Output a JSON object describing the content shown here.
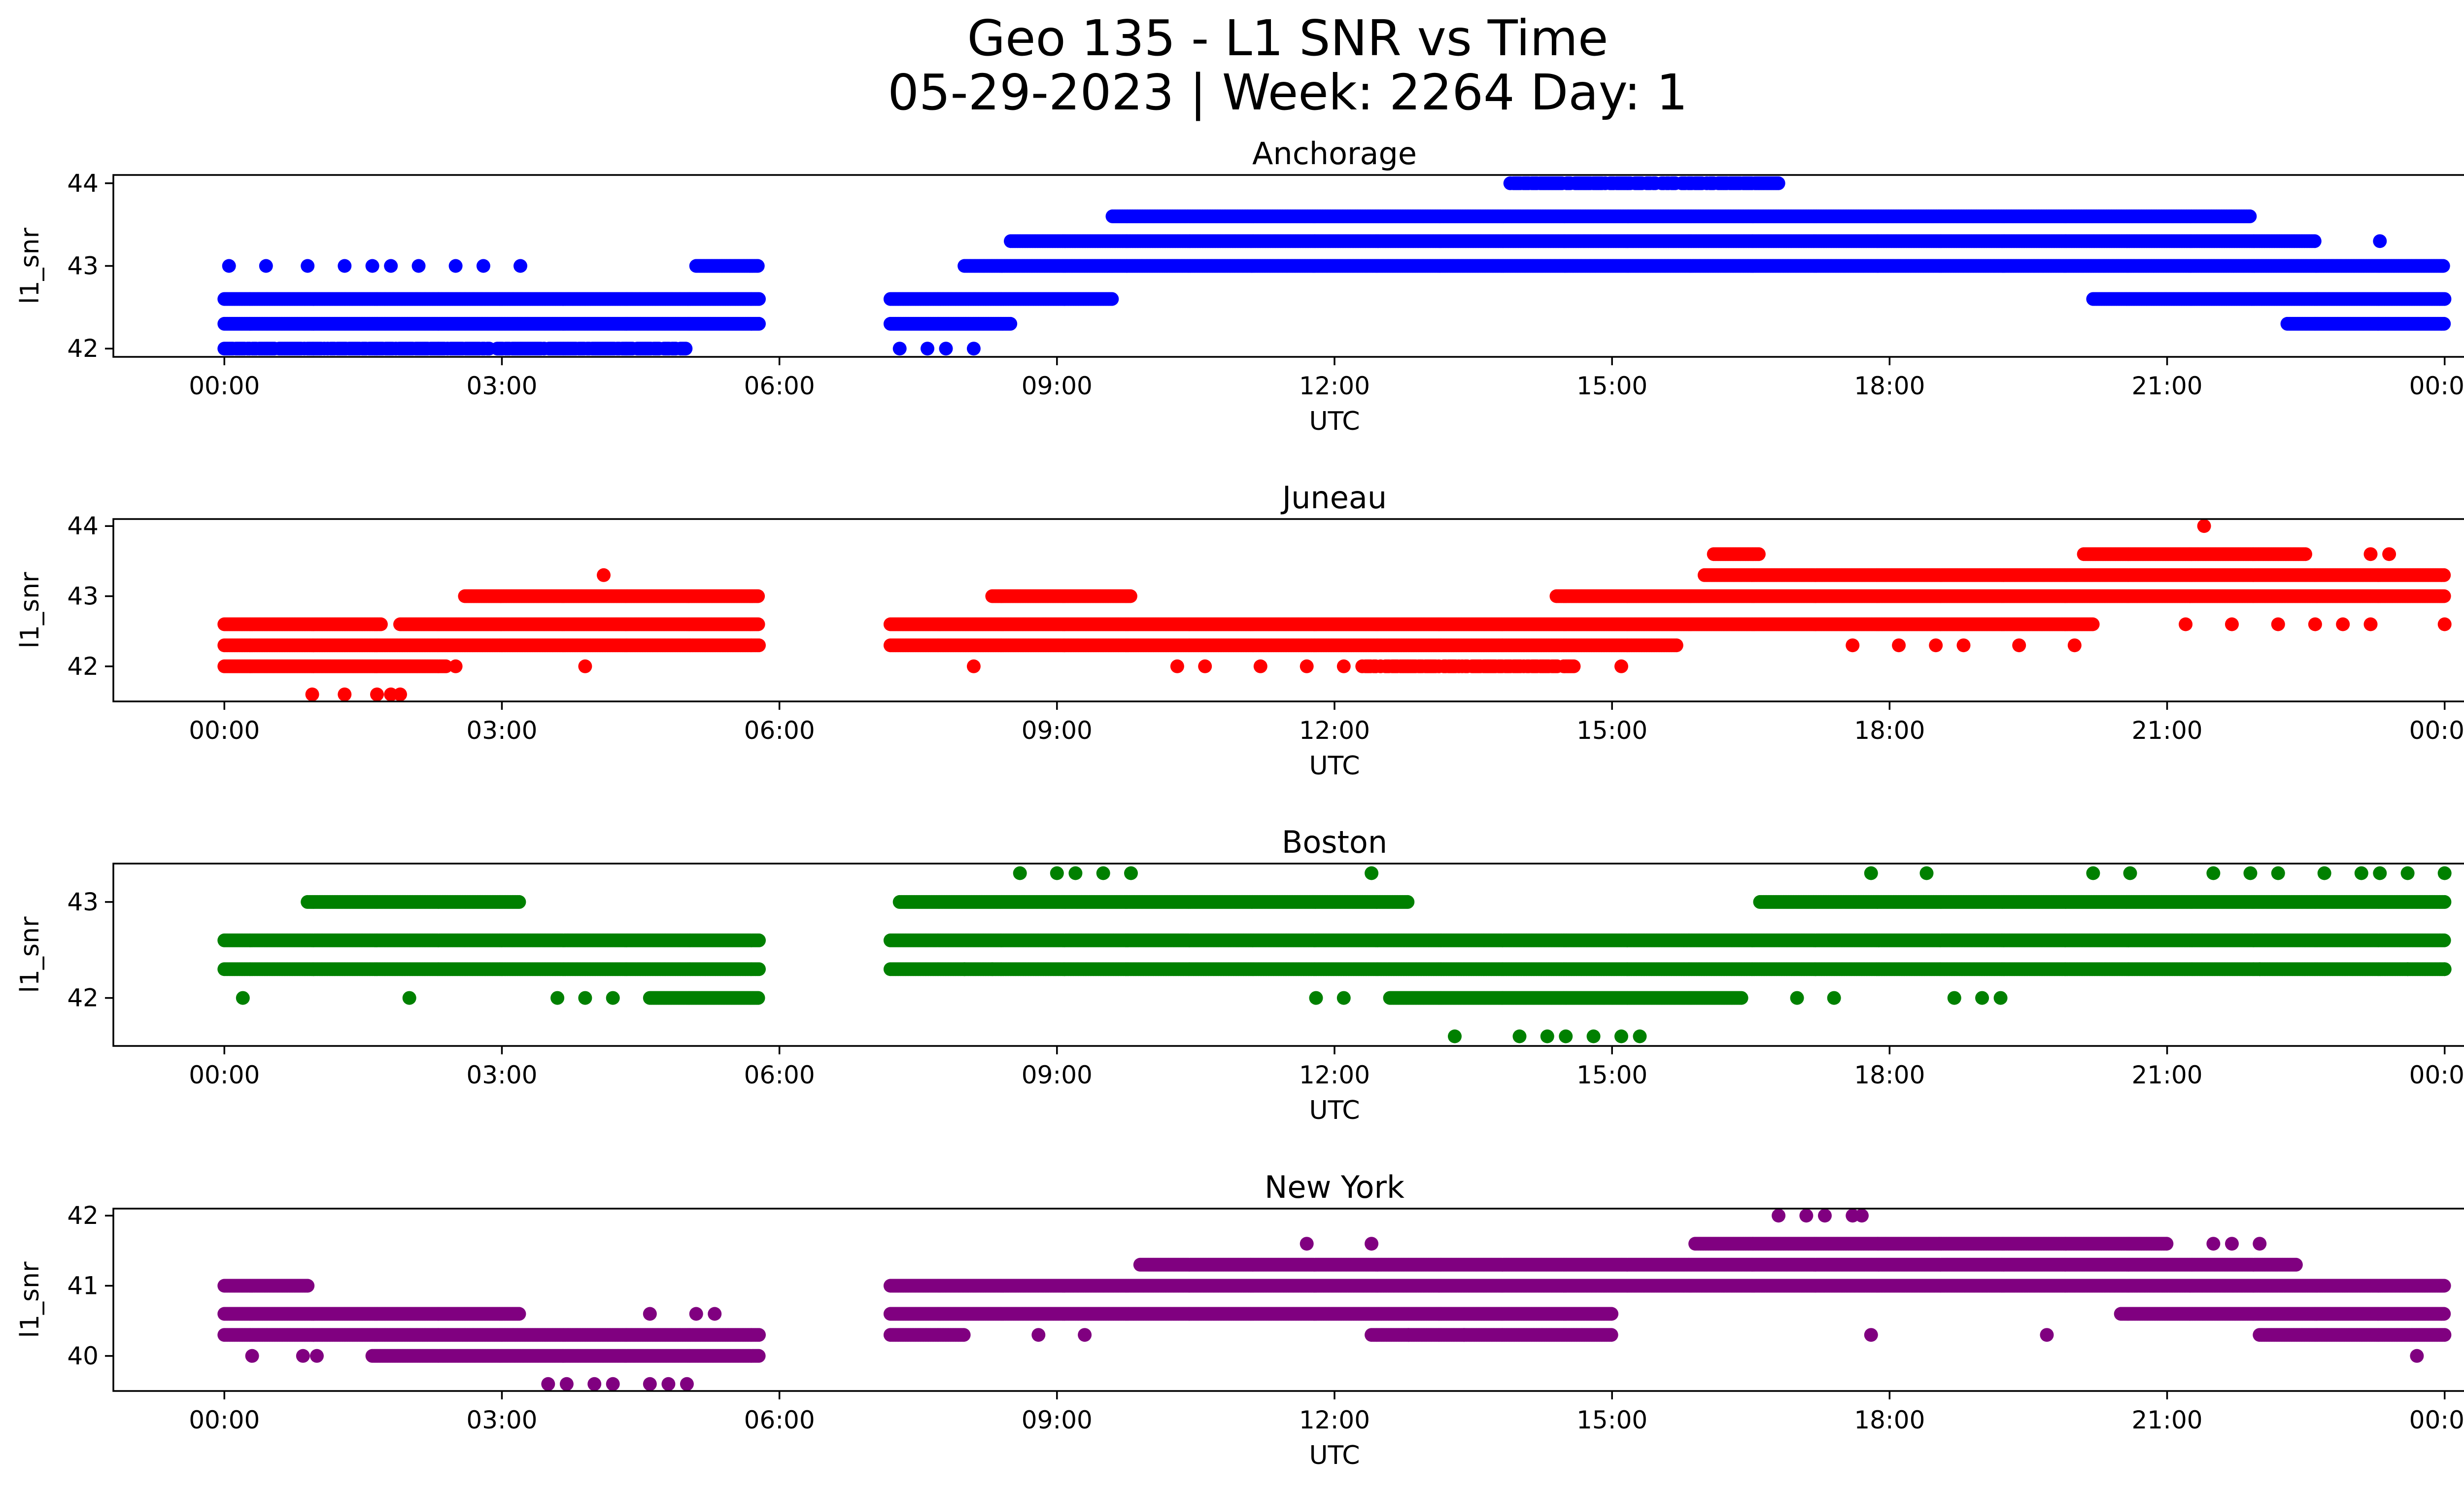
{
  "figure": {
    "title_line1": "Geo 135 - L1 SNR vs Time",
    "title_line2": "05-29-2023 | Week: 2264 Day: 1"
  },
  "chart_data": [
    {
      "type": "scatter",
      "title": "Anchorage",
      "xlabel": "UTC",
      "ylabel": "l1_snr",
      "color": "#0000ff",
      "x_unit": "hours UTC",
      "x_ticks": [
        "00:00",
        "03:00",
        "06:00",
        "09:00",
        "12:00",
        "15:00",
        "18:00",
        "21:00",
        "00:00"
      ],
      "xlim": [
        -1.2,
        25.2
      ],
      "ylim": [
        41.9,
        44.1
      ],
      "y_ticks": [
        42,
        43,
        44
      ],
      "gap_utc": [
        5.8,
        7.2
      ],
      "bands": [
        {
          "y": 42.6,
          "segments": [
            [
              0.0,
              5.78
            ],
            [
              7.2,
              9.6
            ],
            [
              20.2,
              24.0
            ]
          ],
          "density": "dense"
        },
        {
          "y": 42.3,
          "segments": [
            [
              0.0,
              5.78
            ],
            [
              7.2,
              8.5
            ],
            [
              22.3,
              24.0
            ]
          ],
          "density": "dense"
        },
        {
          "y": 42.0,
          "segments": [
            [
              0.0,
              5.0
            ]
          ],
          "density": "mixed"
        },
        {
          "y": 42.0,
          "points": [
            7.3,
            7.6,
            7.8,
            8.1
          ]
        },
        {
          "y": 43.0,
          "points": [
            0.05,
            0.45,
            0.9,
            1.3,
            1.6,
            1.8,
            2.1,
            2.5,
            2.8,
            3.2
          ]
        },
        {
          "y": 43.0,
          "segments": [
            [
              5.1,
              5.78
            ],
            [
              8.0,
              24.0
            ]
          ],
          "density": "dense"
        },
        {
          "y": 43.3,
          "segments": [
            [
              8.5,
              22.6
            ]
          ],
          "density": "dense"
        },
        {
          "y": 43.6,
          "segments": [
            [
              9.6,
              21.9
            ]
          ],
          "density": "dense"
        },
        {
          "y": 44.0,
          "segments": [
            [
              13.9,
              16.8
            ]
          ],
          "density": "mixed"
        },
        {
          "y": 43.3,
          "points": [
            23.3
          ]
        }
      ]
    },
    {
      "type": "scatter",
      "title": "Juneau",
      "xlabel": "UTC",
      "ylabel": "l1_snr",
      "color": "#ff0000",
      "x_unit": "hours UTC",
      "x_ticks": [
        "00:00",
        "03:00",
        "06:00",
        "09:00",
        "12:00",
        "15:00",
        "18:00",
        "21:00",
        "00:00"
      ],
      "xlim": [
        -1.2,
        25.2
      ],
      "ylim": [
        41.5,
        44.1
      ],
      "y_ticks": [
        42,
        43,
        44
      ],
      "gap_utc": [
        5.8,
        7.2
      ],
      "bands": [
        {
          "y": 42.3,
          "segments": [
            [
              0.0,
              5.78
            ],
            [
              7.2,
              15.7
            ]
          ],
          "density": "dense"
        },
        {
          "y": 42.6,
          "segments": [
            [
              0.0,
              1.7
            ],
            [
              1.9,
              5.78
            ],
            [
              7.2,
              20.2
            ]
          ],
          "density": "dense"
        },
        {
          "y": 42.0,
          "segments": [
            [
              0.0,
              2.4
            ]
          ],
          "density": "dense"
        },
        {
          "y": 41.6,
          "points": [
            0.95,
            1.3,
            1.65,
            1.8,
            1.9
          ]
        },
        {
          "y": 43.0,
          "segments": [
            [
              2.6,
              5.78
            ],
            [
              8.3,
              9.8
            ],
            [
              14.4,
              24.0
            ]
          ],
          "density": "dense"
        },
        {
          "y": 43.3,
          "points": [
            4.1
          ]
        },
        {
          "y": 42.0,
          "points": [
            2.5,
            3.9,
            8.1,
            10.3,
            10.6,
            11.2,
            11.7,
            12.1
          ]
        },
        {
          "y": 42.0,
          "segments": [
            [
              12.3,
              14.6
            ]
          ],
          "density": "mixed"
        },
        {
          "y": 42.0,
          "points": [
            15.1
          ]
        },
        {
          "y": 43.3,
          "segments": [
            [
              16.0,
              24.0
            ]
          ],
          "density": "dense"
        },
        {
          "y": 43.6,
          "segments": [
            [
              16.1,
              16.6
            ],
            [
              20.1,
              22.5
            ]
          ],
          "density": "dense"
        },
        {
          "y": 43.6,
          "points": [
            23.2,
            23.4
          ]
        },
        {
          "y": 44.0,
          "points": [
            21.4
          ]
        },
        {
          "y": 42.6,
          "points": [
            21.2,
            21.7,
            22.2,
            22.6,
            22.9,
            23.2,
            24.0
          ]
        },
        {
          "y": 42.3,
          "points": [
            17.6,
            18.1,
            18.5,
            18.8,
            19.4,
            20.0
          ]
        }
      ]
    },
    {
      "type": "scatter",
      "title": "Boston",
      "xlabel": "UTC",
      "ylabel": "l1_snr",
      "color": "#008000",
      "x_unit": "hours UTC",
      "x_ticks": [
        "00:00",
        "03:00",
        "06:00",
        "09:00",
        "12:00",
        "15:00",
        "18:00",
        "21:00",
        "00:00"
      ],
      "xlim": [
        -1.2,
        25.2
      ],
      "ylim": [
        41.5,
        43.4
      ],
      "y_ticks": [
        42,
        43
      ],
      "gap_utc": [
        5.8,
        7.2
      ],
      "bands": [
        {
          "y": 42.6,
          "segments": [
            [
              0.0,
              5.78
            ],
            [
              7.2,
              24.0
            ]
          ],
          "density": "dense"
        },
        {
          "y": 42.3,
          "segments": [
            [
              0.0,
              5.78
            ],
            [
              7.2,
              24.0
            ]
          ],
          "density": "dense"
        },
        {
          "y": 43.0,
          "segments": [
            [
              0.9,
              3.2
            ],
            [
              7.3,
              12.8
            ],
            [
              16.6,
              24.0
            ]
          ],
          "density": "dense"
        },
        {
          "y": 42.0,
          "segments": [
            [
              4.6,
              5.78
            ],
            [
              12.6,
              16.4
            ]
          ],
          "density": "dense"
        },
        {
          "y": 42.0,
          "points": [
            0.2,
            2.0,
            3.6,
            3.9,
            4.2,
            11.8,
            12.1,
            17.0,
            17.4,
            18.7,
            19.0,
            19.2
          ]
        },
        {
          "y": 43.3,
          "points": [
            8.6,
            9.0,
            9.2,
            9.5,
            9.8,
            12.4,
            17.8,
            18.4,
            20.2,
            20.6,
            21.5,
            21.9,
            22.2,
            22.7,
            23.1,
            23.3,
            23.6,
            24.0
          ]
        },
        {
          "y": 41.6,
          "points": [
            13.3,
            14.0,
            14.3,
            14.5,
            14.8,
            15.1,
            15.3
          ]
        },
        {
          "y": 42.3,
          "points": [
            8.0,
            8.3,
            22.0,
            23.6,
            24.0
          ]
        }
      ]
    },
    {
      "type": "scatter",
      "title": "New York",
      "xlabel": "UTC",
      "ylabel": "l1_snr",
      "color": "#800080",
      "x_unit": "hours UTC",
      "x_ticks": [
        "00:00",
        "03:00",
        "06:00",
        "09:00",
        "12:00",
        "15:00",
        "18:00",
        "21:00",
        "00:00"
      ],
      "xlim": [
        -1.2,
        25.2
      ],
      "ylim": [
        39.5,
        42.1
      ],
      "y_ticks": [
        40,
        41,
        42
      ],
      "gap_utc": [
        5.8,
        7.2
      ],
      "bands": [
        {
          "y": 40.6,
          "segments": [
            [
              0.0,
              3.2
            ],
            [
              7.2,
              15.0
            ],
            [
              20.5,
              24.0
            ]
          ],
          "density": "dense"
        },
        {
          "y": 40.3,
          "segments": [
            [
              0.0,
              5.78
            ],
            [
              7.2,
              8.0
            ],
            [
              12.4,
              15.0
            ],
            [
              22.0,
              24.0
            ]
          ],
          "density": "dense"
        },
        {
          "y": 41.0,
          "segments": [
            [
              0.0,
              0.9
            ],
            [
              7.2,
              24.0
            ]
          ],
          "density": "dense"
        },
        {
          "y": 40.0,
          "segments": [
            [
              1.6,
              5.78
            ]
          ],
          "density": "dense"
        },
        {
          "y": 40.0,
          "points": [
            0.3,
            0.85,
            1.0,
            23.7
          ]
        },
        {
          "y": 39.6,
          "points": [
            3.5,
            3.7,
            4.0,
            4.2,
            4.6,
            4.8,
            5.0
          ]
        },
        {
          "y": 40.6,
          "points": [
            4.6,
            5.1,
            5.3
          ]
        },
        {
          "y": 41.3,
          "segments": [
            [
              9.9,
              22.4
            ]
          ],
          "density": "dense"
        },
        {
          "y": 41.6,
          "segments": [
            [
              15.9,
              21.0
            ]
          ],
          "density": "dense"
        },
        {
          "y": 41.6,
          "points": [
            11.7,
            12.4,
            21.5,
            21.7,
            22.0
          ]
        },
        {
          "y": 42.0,
          "points": [
            16.8,
            17.1,
            17.3,
            17.6,
            17.7
          ]
        },
        {
          "y": 40.3,
          "points": [
            8.8,
            9.3,
            12.8,
            13.4,
            17.8,
            19.7
          ]
        }
      ]
    }
  ]
}
